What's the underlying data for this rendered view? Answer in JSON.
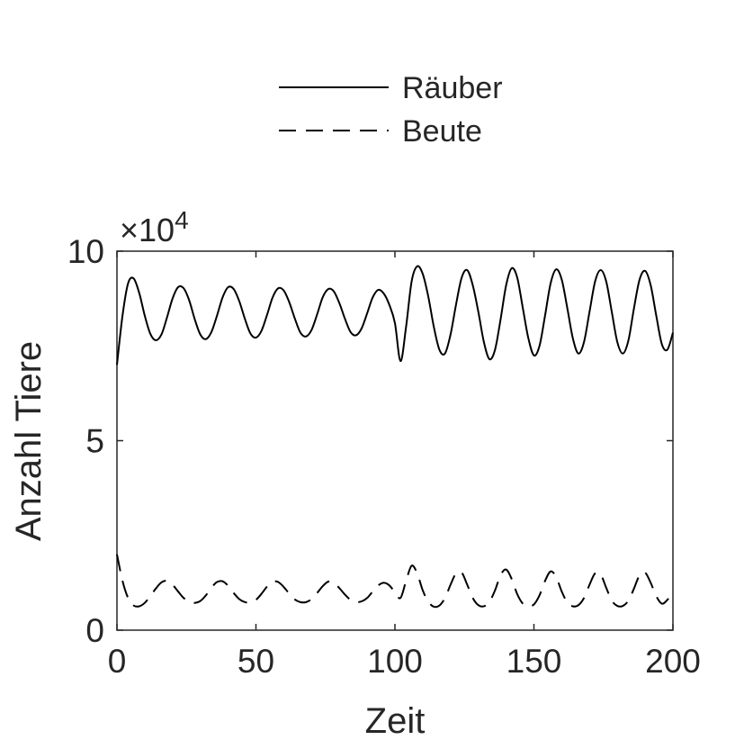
{
  "chart_data": {
    "type": "line",
    "title": "",
    "xlabel": "Zeit",
    "ylabel": "Anzahl Tiere",
    "xlim": [
      0,
      200
    ],
    "ylim": [
      0,
      100000
    ],
    "y_exponent_label": "×10",
    "y_exponent_power": "4",
    "x_ticks": [
      0,
      50,
      100,
      150,
      200
    ],
    "x_tick_labels": [
      "0",
      "50",
      "100",
      "150",
      "200"
    ],
    "y_ticks": [
      0,
      50000,
      100000
    ],
    "y_tick_labels": [
      "0",
      "5",
      "10"
    ],
    "grid": false,
    "legend_position": "top-center",
    "series": [
      {
        "name": "Räuber",
        "style": "solid",
        "color": "#000000",
        "x": [
          0,
          2,
          4,
          6,
          8,
          10,
          12,
          14,
          16,
          18,
          20,
          22,
          24,
          26,
          28,
          30,
          32,
          34,
          36,
          38,
          40,
          42,
          44,
          46,
          48,
          50,
          52,
          54,
          56,
          58,
          60,
          62,
          64,
          66,
          68,
          70,
          72,
          74,
          76,
          78,
          80,
          82,
          84,
          86,
          88,
          90,
          92,
          94,
          96,
          98,
          100,
          102,
          104,
          106,
          108,
          110,
          112,
          114,
          116,
          118,
          120,
          122,
          124,
          126,
          128,
          130,
          132,
          134,
          136,
          138,
          140,
          142,
          144,
          146,
          148,
          150,
          152,
          154,
          156,
          158,
          160,
          162,
          164,
          166,
          168,
          170,
          172,
          174,
          176,
          178,
          180,
          182,
          184,
          186,
          188,
          190,
          192,
          194,
          196,
          198,
          200
        ],
        "y": [
          70000,
          83000,
          91500,
          92800,
          89000,
          83000,
          78200,
          76500,
          78000,
          82500,
          87500,
          90500,
          90200,
          87000,
          82000,
          78000,
          76800,
          78700,
          83000,
          87800,
          90500,
          90000,
          86800,
          82200,
          78300,
          77200,
          79000,
          83200,
          87800,
          90200,
          89600,
          86500,
          82200,
          78500,
          77500,
          79200,
          83300,
          87800,
          90000,
          89400,
          86300,
          82200,
          78700,
          77800,
          79600,
          83600,
          87800,
          89800,
          88800,
          85800,
          81000,
          71000,
          80000,
          92000,
          96000,
          94000,
          88000,
          80000,
          74000,
          73000,
          78000,
          86000,
          93000,
          95000,
          91000,
          84000,
          76000,
          71500,
          74000,
          82000,
          91000,
          95500,
          93000,
          85000,
          77000,
          72500,
          75000,
          83000,
          91500,
          95200,
          92500,
          85000,
          77000,
          73000,
          76000,
          84000,
          92000,
          95000,
          92000,
          84000,
          76000,
          73000,
          76500,
          85000,
          92500,
          94800,
          91000,
          83000,
          75500,
          74000,
          78500
        ]
      },
      {
        "name": "Beute",
        "style": "dashed",
        "color": "#000000",
        "x": [
          0,
          2,
          4,
          6,
          8,
          10,
          12,
          14,
          16,
          18,
          20,
          22,
          24,
          26,
          28,
          30,
          32,
          34,
          36,
          38,
          40,
          42,
          44,
          46,
          48,
          50,
          52,
          54,
          56,
          58,
          60,
          62,
          64,
          66,
          68,
          70,
          72,
          74,
          76,
          78,
          80,
          82,
          84,
          86,
          88,
          90,
          92,
          94,
          96,
          98,
          100,
          102,
          104,
          106,
          108,
          110,
          112,
          114,
          116,
          118,
          120,
          122,
          124,
          126,
          128,
          130,
          132,
          134,
          136,
          138,
          140,
          142,
          144,
          146,
          148,
          150,
          152,
          154,
          156,
          158,
          160,
          162,
          164,
          166,
          168,
          170,
          172,
          174,
          176,
          178,
          180,
          182,
          184,
          186,
          188,
          190,
          192,
          194,
          196,
          198,
          200
        ],
        "y": [
          20000,
          13000,
          8500,
          6500,
          6300,
          7200,
          9000,
          11000,
          12600,
          13000,
          12000,
          10200,
          8500,
          7500,
          7200,
          7700,
          9200,
          11200,
          12700,
          12900,
          11700,
          9800,
          8200,
          7400,
          7300,
          8000,
          9600,
          11500,
          12800,
          12700,
          11400,
          9600,
          8100,
          7400,
          7400,
          8200,
          9800,
          11600,
          12800,
          12500,
          11100,
          9400,
          8000,
          7400,
          7600,
          8500,
          10200,
          11800,
          12500,
          11800,
          10000,
          8500,
          13000,
          17000,
          15000,
          10500,
          7500,
          6200,
          6500,
          8500,
          12000,
          15000,
          15200,
          12000,
          8500,
          6600,
          6300,
          7500,
          10500,
          14500,
          16000,
          13500,
          9500,
          7000,
          6300,
          6800,
          9200,
          13000,
          15500,
          14000,
          10200,
          7300,
          6300,
          6600,
          8500,
          12000,
          15000,
          14700,
          11200,
          7800,
          6400,
          6400,
          7800,
          11000,
          14500,
          15200,
          12500,
          9000,
          7000,
          8000,
          10000
        ]
      }
    ]
  }
}
